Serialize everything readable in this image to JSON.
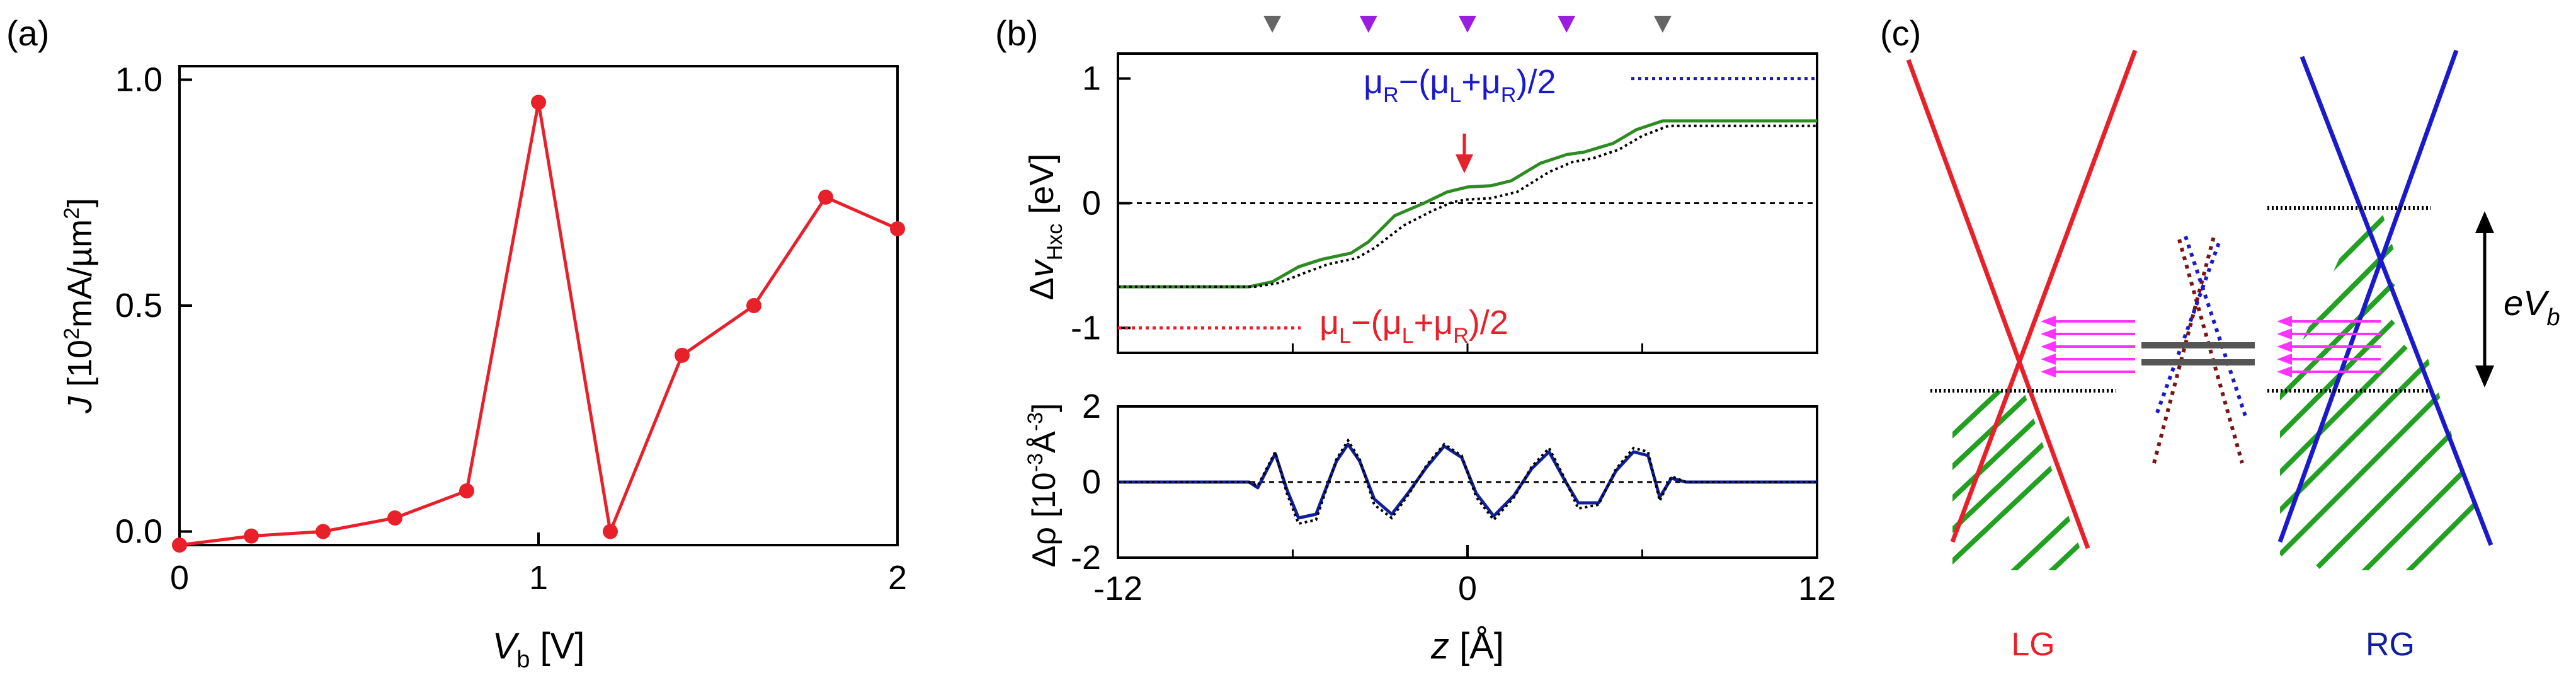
{
  "panels": {
    "a_label": "(a)",
    "b_label": "(b)",
    "c_label": "(c)"
  },
  "colors": {
    "red": "#e8202a",
    "green": "#2e8b22",
    "blue": "#1a1acc",
    "navy": "#10209a",
    "magenta": "#ff33ff",
    "purple": "#9b1ee0",
    "gray": "#666666",
    "darkred": "#7a1414",
    "hatch": "#22a022"
  },
  "chart_data": [
    {
      "id": "a",
      "type": "line",
      "xlabel": "V_b [V]",
      "ylabel": "J [10^2 mA/µm^2]",
      "xlim": [
        0,
        2
      ],
      "ylim": [
        -0.03,
        1.03
      ],
      "xticks": [
        "0",
        "1",
        "2"
      ],
      "yticks": [
        "0.0",
        "0.5",
        "1.0"
      ],
      "series": [
        {
          "x": [
            0,
            0.2,
            0.4,
            0.6,
            0.8,
            1.0,
            1.2,
            1.4,
            1.6,
            1.8,
            2.0
          ],
          "y": [
            -0.03,
            -0.01,
            0.0,
            0.03,
            0.09,
            0.95,
            0.0,
            0.39,
            0.5,
            0.74,
            0.67
          ]
        }
      ]
    },
    {
      "id": "b_top",
      "type": "line",
      "ylabel": "Δv_Hxc [eV]",
      "xlim": [
        -12,
        12
      ],
      "ylim": [
        -1.2,
        1.2
      ],
      "yticks": [
        "-1",
        "0",
        "1"
      ],
      "annotations": {
        "right_level": "μR−(μL+μR)/2",
        "left_level": "μL−(μL+μR)/2"
      },
      "levels": {
        "right": 1.0,
        "left": -1.0
      },
      "markers": [
        {
          "x": -6.7,
          "color": "gray"
        },
        {
          "x": -3.4,
          "color": "purple"
        },
        {
          "x": 0.0,
          "color": "purple"
        },
        {
          "x": 3.4,
          "color": "purple"
        },
        {
          "x": 6.7,
          "color": "gray"
        }
      ],
      "arrow_x": 0.0,
      "series": [
        {
          "style": "solid-green",
          "x": [
            -12,
            -7.5,
            -6.7,
            -5.8,
            -5.0,
            -4.0,
            -3.4,
            -2.5,
            -1.5,
            -0.7,
            0,
            0.8,
            1.5,
            2.5,
            3.4,
            4.0,
            5.0,
            5.8,
            6.7,
            12
          ],
          "y": [
            -0.67,
            -0.67,
            -0.63,
            -0.51,
            -0.45,
            -0.4,
            -0.31,
            -0.1,
            0.0,
            0.09,
            0.13,
            0.14,
            0.18,
            0.32,
            0.39,
            0.41,
            0.48,
            0.59,
            0.66,
            0.66
          ]
        },
        {
          "style": "dotted-black",
          "x": [
            -12,
            -7.3,
            -6.5,
            -5.6,
            -4.8,
            -3.8,
            -3.2,
            -2.2,
            -1.2,
            -0.5,
            0,
            0.8,
            1.7,
            2.8,
            3.6,
            4.3,
            5.2,
            6.0,
            6.9,
            12
          ],
          "y": [
            -0.67,
            -0.67,
            -0.64,
            -0.56,
            -0.49,
            -0.44,
            -0.36,
            -0.18,
            -0.06,
            0.01,
            0.03,
            0.04,
            0.09,
            0.25,
            0.33,
            0.36,
            0.43,
            0.54,
            0.62,
            0.62
          ]
        }
      ]
    },
    {
      "id": "b_bottom",
      "type": "line",
      "xlabel": "z [Å]",
      "ylabel": "Δρ [10^-3 Å^-3]",
      "xlim": [
        -12,
        12
      ],
      "ylim": [
        -2,
        2
      ],
      "xticks": [
        "-12",
        "0",
        "12"
      ],
      "yticks": [
        "-2",
        "0",
        "2"
      ],
      "series": [
        {
          "style": "solid-navy",
          "x": [
            -12,
            -7.5,
            -7.2,
            -6.9,
            -6.6,
            -6.2,
            -5.8,
            -5.2,
            -4.5,
            -4.1,
            -3.7,
            -3.2,
            -2.6,
            -2.0,
            -1.4,
            -0.8,
            -0.2,
            0.3,
            0.9,
            1.6,
            2.2,
            2.8,
            3.3,
            3.8,
            4.5,
            5.1,
            5.7,
            6.2,
            6.6,
            7.0,
            7.5,
            12
          ],
          "y": [
            0,
            0,
            -0.15,
            0.3,
            0.75,
            -0.2,
            -0.95,
            -0.85,
            0.55,
            1.0,
            0.55,
            -0.45,
            -0.85,
            -0.25,
            0.4,
            0.95,
            0.65,
            -0.3,
            -0.9,
            -0.35,
            0.35,
            0.8,
            0.1,
            -0.55,
            -0.55,
            0.3,
            0.8,
            0.7,
            -0.4,
            0.1,
            0,
            0
          ]
        },
        {
          "style": "dotted-navy",
          "x": [
            -12,
            -7.5,
            -7.2,
            -6.9,
            -6.6,
            -6.2,
            -5.8,
            -5.2,
            -4.5,
            -4.1,
            -3.7,
            -3.2,
            -2.6,
            -2.0,
            -1.4,
            -0.8,
            -0.2,
            0.3,
            0.9,
            1.6,
            2.2,
            2.8,
            3.3,
            3.8,
            4.5,
            5.1,
            5.7,
            6.2,
            6.6,
            7.0,
            7.5,
            12
          ],
          "y": [
            0,
            0,
            -0.1,
            0.35,
            0.8,
            -0.3,
            -1.1,
            -1.0,
            0.6,
            1.1,
            0.6,
            -0.6,
            -0.95,
            -0.3,
            0.45,
            1.0,
            0.7,
            -0.4,
            -1.0,
            -0.4,
            0.4,
            0.9,
            0.15,
            -0.7,
            -0.6,
            0.35,
            0.9,
            0.8,
            -0.5,
            0.15,
            0,
            0
          ]
        }
      ]
    }
  ],
  "diagram_c": {
    "left_label": "LG",
    "right_label": "RG",
    "bias_label": "eV",
    "bias_sub": "b"
  }
}
